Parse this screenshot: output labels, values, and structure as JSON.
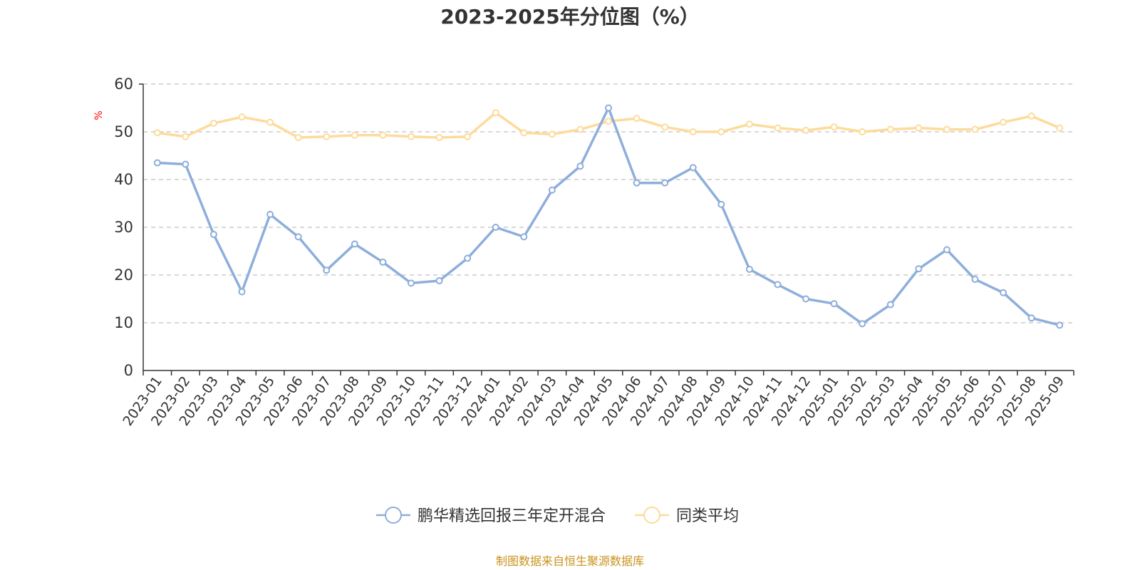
{
  "chart_data": {
    "type": "line",
    "title": "2023-2025年分位图（%）",
    "ylabel": "%",
    "xlabel": "",
    "ylim": [
      0,
      60
    ],
    "yticks": [
      0,
      10,
      20,
      30,
      40,
      50,
      60
    ],
    "grid": true,
    "legend_position": "bottom-center",
    "categories": [
      "2023-01",
      "2023-02",
      "2023-03",
      "2023-04",
      "2023-05",
      "2023-06",
      "2023-07",
      "2023-08",
      "2023-09",
      "2023-10",
      "2023-11",
      "2023-12",
      "2024-01",
      "2024-02",
      "2024-03",
      "2024-04",
      "2024-05",
      "2024-06",
      "2024-07",
      "2024-08",
      "2024-09",
      "2024-10",
      "2024-11",
      "2024-12",
      "2025-01",
      "2025-02",
      "2025-03",
      "2025-04",
      "2025-05",
      "2025-06",
      "2025-07",
      "2025-08",
      "2025-09"
    ],
    "series": [
      {
        "name": "鹏华精选回报三年定开混合",
        "color": "#8eaedb",
        "values": [
          43.5,
          43.2,
          28.5,
          16.5,
          32.7,
          28.0,
          21.0,
          26.5,
          22.7,
          18.3,
          18.8,
          23.5,
          30.0,
          28.0,
          37.8,
          42.8,
          55.0,
          39.3,
          39.3,
          42.5,
          34.8,
          21.2,
          18.0,
          15.0,
          14.0,
          9.8,
          13.8,
          21.3,
          25.3,
          19.1,
          16.3,
          11.0,
          9.5
        ]
      },
      {
        "name": "同类平均",
        "color": "#fddb9b",
        "values": [
          49.8,
          49.0,
          51.8,
          53.1,
          52.0,
          48.8,
          49.0,
          49.3,
          49.3,
          49.0,
          48.8,
          49.0,
          54.0,
          49.8,
          49.5,
          50.5,
          52.2,
          52.8,
          51.0,
          50.0,
          50.0,
          51.6,
          50.8,
          50.3,
          51.0,
          50.0,
          50.5,
          50.8,
          50.5,
          50.5,
          52.0,
          53.3,
          50.8
        ]
      }
    ],
    "source": "制图数据来自恒生聚源数据库",
    "source_color": "#c8931e",
    "unit_color": "#ff0000"
  }
}
